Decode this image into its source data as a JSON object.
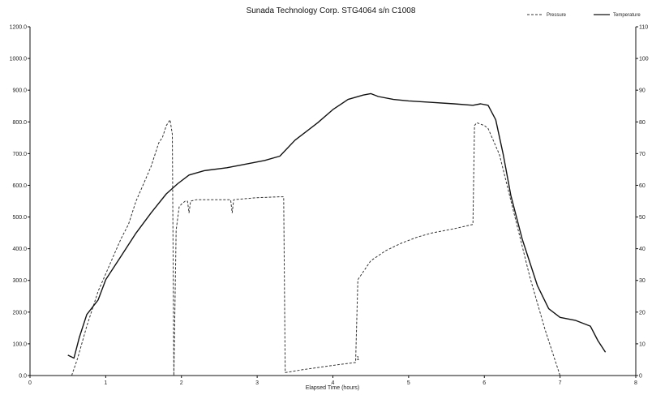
{
  "chart_data": {
    "type": "line",
    "title": "Sunada Technology Corp. STG4064 s/n C1008",
    "xlabel": "Elapsed Time (hours)",
    "ylabel": "",
    "ylabel_right": "",
    "xlim": [
      0,
      8
    ],
    "ylim": [
      0,
      1200
    ],
    "ylim_right": [
      0,
      110
    ],
    "grid": false,
    "legend_position": "top-right",
    "x_ticks": [
      "0",
      "1",
      "2",
      "3",
      "4",
      "5",
      "6",
      "7",
      "8"
    ],
    "y_ticks": [
      "0.0",
      "100.0",
      "200.0",
      "300.0",
      "400.0",
      "500.0",
      "600.0",
      "700.0",
      "800.0",
      "900.0",
      "1000.0",
      "1200.0"
    ],
    "y_ticks_right": [
      "0",
      "10",
      "20",
      "30",
      "40",
      "50",
      "60",
      "70",
      "80",
      "90",
      "100",
      "110"
    ],
    "series": [
      {
        "name": "Pressure",
        "color": "#333333",
        "dash": "3,2",
        "axis": "left",
        "points": [
          [
            0.55,
            0
          ],
          [
            0.63,
            60
          ],
          [
            0.75,
            170
          ],
          [
            0.9,
            290
          ],
          [
            1.0,
            350
          ],
          [
            1.1,
            410
          ],
          [
            1.2,
            470
          ],
          [
            1.3,
            520
          ],
          [
            1.4,
            600
          ],
          [
            1.5,
            660
          ],
          [
            1.6,
            720
          ],
          [
            1.7,
            800
          ],
          [
            1.75,
            820
          ],
          [
            1.8,
            860
          ],
          [
            1.85,
            880
          ],
          [
            1.88,
            830
          ],
          [
            1.9,
            0
          ],
          [
            1.93,
            500
          ],
          [
            1.97,
            580
          ],
          [
            2.0,
            590
          ],
          [
            2.05,
            600
          ],
          [
            2.08,
            600
          ],
          [
            2.1,
            560
          ],
          [
            2.12,
            600
          ],
          [
            2.2,
            605
          ],
          [
            2.4,
            605
          ],
          [
            2.65,
            605
          ],
          [
            2.67,
            560
          ],
          [
            2.69,
            605
          ],
          [
            3.0,
            612
          ],
          [
            3.3,
            615
          ],
          [
            3.35,
            615
          ],
          [
            3.37,
            10
          ],
          [
            3.6,
            20
          ],
          [
            4.0,
            35
          ],
          [
            4.3,
            45
          ],
          [
            4.33,
            330
          ],
          [
            4.5,
            395
          ],
          [
            4.7,
            430
          ],
          [
            4.9,
            455
          ],
          [
            5.1,
            475
          ],
          [
            5.3,
            490
          ],
          [
            5.6,
            505
          ],
          [
            5.85,
            520
          ],
          [
            5.87,
            860
          ],
          [
            5.9,
            870
          ],
          [
            6.0,
            860
          ],
          [
            6.05,
            850
          ],
          [
            6.2,
            760
          ],
          [
            6.4,
            550
          ],
          [
            6.6,
            340
          ],
          [
            6.8,
            160
          ],
          [
            7.0,
            0
          ]
        ]
      },
      {
        "name": "Temperature",
        "color": "#111111",
        "dash": "",
        "axis": "left",
        "points": [
          [
            0.5,
            70
          ],
          [
            0.58,
            60
          ],
          [
            0.65,
            130
          ],
          [
            0.75,
            210
          ],
          [
            0.9,
            260
          ],
          [
            1.0,
            330
          ],
          [
            1.2,
            410
          ],
          [
            1.4,
            490
          ],
          [
            1.6,
            560
          ],
          [
            1.8,
            625
          ],
          [
            1.95,
            660
          ],
          [
            2.1,
            690
          ],
          [
            2.3,
            705
          ],
          [
            2.6,
            715
          ],
          [
            2.9,
            730
          ],
          [
            3.1,
            740
          ],
          [
            3.3,
            755
          ],
          [
            3.5,
            810
          ],
          [
            3.8,
            870
          ],
          [
            4.0,
            915
          ],
          [
            4.2,
            950
          ],
          [
            4.4,
            965
          ],
          [
            4.5,
            970
          ],
          [
            4.6,
            960
          ],
          [
            4.8,
            950
          ],
          [
            5.0,
            945
          ],
          [
            5.3,
            940
          ],
          [
            5.6,
            935
          ],
          [
            5.85,
            930
          ],
          [
            5.95,
            935
          ],
          [
            6.05,
            930
          ],
          [
            6.15,
            880
          ],
          [
            6.25,
            760
          ],
          [
            6.35,
            620
          ],
          [
            6.5,
            470
          ],
          [
            6.7,
            310
          ],
          [
            6.85,
            230
          ],
          [
            7.0,
            200
          ],
          [
            7.2,
            190
          ],
          [
            7.4,
            170
          ],
          [
            7.5,
            120
          ],
          [
            7.6,
            80
          ]
        ]
      }
    ],
    "annotations": [
      {
        "text": "1",
        "x": 4.33,
        "y": 45
      }
    ]
  }
}
